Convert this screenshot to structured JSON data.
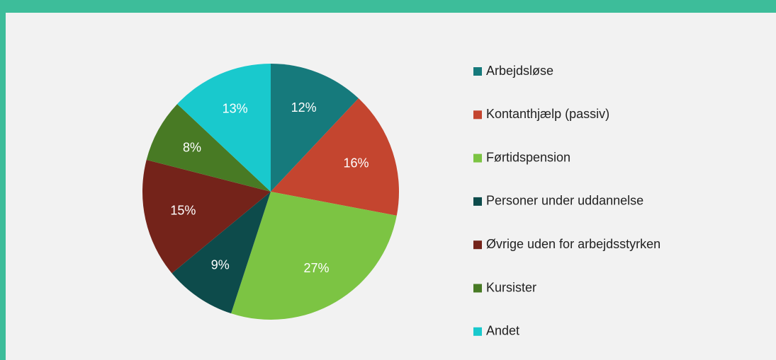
{
  "chart_data": {
    "type": "pie",
    "categories": [
      "Arbejdsløse",
      "Kontanthjælp (passiv)",
      "Førtidspension",
      "Personer under uddannelse",
      "Øvrige uden for arbejdsstyrken",
      "Kursister",
      "Andet"
    ],
    "values": [
      12,
      16,
      27,
      9,
      15,
      8,
      13
    ],
    "value_labels": [
      "12%",
      "16%",
      "27%",
      "9%",
      "15%",
      "8%",
      "13%"
    ],
    "colors": [
      "#167a7c",
      "#c4452f",
      "#7cc443",
      "#0d4b4b",
      "#74231a",
      "#487a24",
      "#19c9cd"
    ],
    "legend": "right"
  }
}
